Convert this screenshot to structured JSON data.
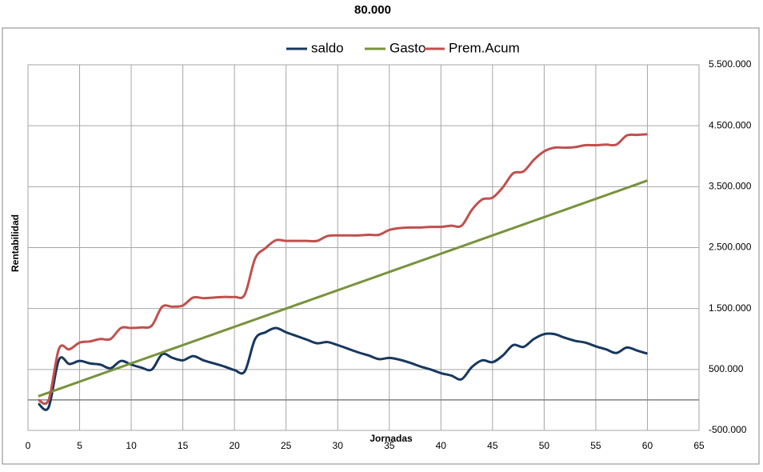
{
  "chart_data": {
    "type": "line",
    "title": "80.000",
    "x_label": "Jornadas",
    "y_label": "Rentabilidad",
    "x": [
      1,
      2,
      3,
      4,
      5,
      6,
      7,
      8,
      9,
      10,
      11,
      12,
      13,
      14,
      15,
      16,
      17,
      18,
      19,
      20,
      21,
      22,
      23,
      24,
      25,
      26,
      27,
      28,
      29,
      30,
      31,
      32,
      33,
      34,
      35,
      36,
      37,
      38,
      39,
      40,
      41,
      42,
      43,
      44,
      45,
      46,
      47,
      48,
      49,
      50,
      51,
      52,
      53,
      54,
      55,
      56,
      57,
      58,
      59,
      60
    ],
    "series": [
      {
        "name": "saldo",
        "color": "#17375e",
        "values": [
          -60000,
          -120000,
          660000,
          590000,
          640000,
          600000,
          580000,
          520000,
          640000,
          580000,
          530000,
          500000,
          750000,
          690000,
          650000,
          720000,
          650000,
          600000,
          550000,
          490000,
          470000,
          1000000,
          1110000,
          1180000,
          1110000,
          1050000,
          990000,
          930000,
          950000,
          900000,
          840000,
          780000,
          730000,
          670000,
          690000,
          660000,
          610000,
          550000,
          500000,
          440000,
          400000,
          340000,
          540000,
          650000,
          620000,
          730000,
          900000,
          870000,
          1000000,
          1080000,
          1080000,
          1020000,
          970000,
          940000,
          880000,
          830000,
          770000,
          860000,
          810000,
          760000
        ]
      },
      {
        "name": "Gasto",
        "color": "#77933c",
        "values": [
          60000,
          120000,
          180000,
          240000,
          300000,
          360000,
          420000,
          480000,
          540000,
          600000,
          660000,
          720000,
          780000,
          840000,
          900000,
          960000,
          1020000,
          1080000,
          1140000,
          1200000,
          1260000,
          1320000,
          1380000,
          1440000,
          1500000,
          1560000,
          1620000,
          1680000,
          1740000,
          1800000,
          1860000,
          1920000,
          1980000,
          2040000,
          2100000,
          2160000,
          2220000,
          2280000,
          2340000,
          2400000,
          2460000,
          2520000,
          2580000,
          2640000,
          2700000,
          2760000,
          2820000,
          2880000,
          2940000,
          3000000,
          3060000,
          3120000,
          3180000,
          3240000,
          3300000,
          3360000,
          3420000,
          3480000,
          3540000,
          3600000
        ]
      },
      {
        "name": "Prem.Acum",
        "color": "#c0504d",
        "values": [
          0,
          0,
          840000,
          830000,
          940000,
          960000,
          1000000,
          1000000,
          1180000,
          1180000,
          1190000,
          1220000,
          1530000,
          1530000,
          1550000,
          1680000,
          1670000,
          1680000,
          1690000,
          1690000,
          1730000,
          2320000,
          2490000,
          2620000,
          2610000,
          2610000,
          2610000,
          2610000,
          2690000,
          2700000,
          2700000,
          2700000,
          2710000,
          2710000,
          2790000,
          2820000,
          2830000,
          2830000,
          2840000,
          2840000,
          2860000,
          2860000,
          3120000,
          3290000,
          3320000,
          3490000,
          3720000,
          3750000,
          3940000,
          4080000,
          4140000,
          4140000,
          4150000,
          4180000,
          4180000,
          4190000,
          4190000,
          4340000,
          4350000,
          4360000
        ]
      }
    ],
    "xlim": [
      0,
      65
    ],
    "xticks": [
      0,
      5,
      10,
      15,
      20,
      25,
      30,
      35,
      40,
      45,
      50,
      55,
      60,
      65
    ],
    "ylim": [
      -500000,
      5500000
    ],
    "yticks": [
      {
        "value": -500000,
        "label": "-500.000"
      },
      {
        "value": 500000,
        "label": "500.000"
      },
      {
        "value": 1500000,
        "label": "1.500.000"
      },
      {
        "value": 2500000,
        "label": "2.500.000"
      },
      {
        "value": 3500000,
        "label": "3.500.000"
      },
      {
        "value": 4500000,
        "label": "4.500.000"
      },
      {
        "value": 5500000,
        "label": "5.500.000"
      }
    ],
    "grid": true,
    "legend": "top",
    "smooth": true
  }
}
